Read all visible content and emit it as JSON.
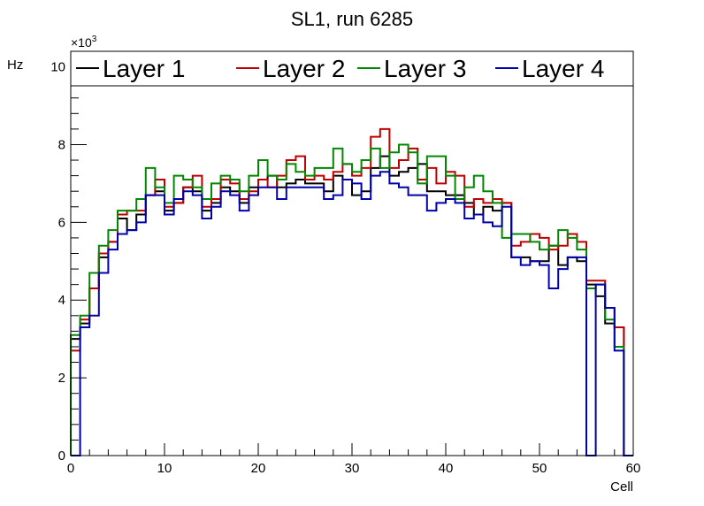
{
  "chart_data": {
    "type": "line",
    "title": "SL1, run 6285",
    "xlabel": "Cell",
    "ylabel": "Hz",
    "y_multiplier_label": "×10",
    "y_multiplier_exp": "3",
    "xlim": [
      0,
      60
    ],
    "ylim": [
      0,
      10400
    ],
    "grid": false,
    "legend_position": "top",
    "x_ticks": [
      "0",
      "10",
      "20",
      "30",
      "40",
      "50",
      "60"
    ],
    "y_ticks": [
      "0",
      "2",
      "4",
      "6",
      "8",
      "10"
    ],
    "x_tick_values": [
      0,
      10,
      20,
      30,
      40,
      50,
      60
    ],
    "y_tick_values": [
      0,
      2000,
      4000,
      6000,
      8000,
      10000
    ],
    "bin_edges_start": 0,
    "bin_width": 1,
    "series": [
      {
        "name": "Layer 1",
        "color": "#000000",
        "values": [
          3000,
          3400,
          4300,
          5100,
          5500,
          6100,
          5800,
          6200,
          6700,
          6800,
          6300,
          6500,
          6900,
          6800,
          6300,
          6500,
          6900,
          6800,
          6500,
          6900,
          7100,
          7200,
          6900,
          7000,
          7100,
          7000,
          7000,
          6800,
          7200,
          7100,
          6700,
          6800,
          7400,
          7700,
          7200,
          7300,
          7400,
          7500,
          6800,
          6800,
          6700,
          6700,
          6500,
          6200,
          6400,
          6300,
          6500,
          5100,
          5100,
          5000,
          5000,
          5400,
          4900,
          5100,
          5000,
          4400,
          4100,
          3400,
          3300,
          0
        ]
      },
      {
        "name": "Layer 2",
        "color": "#c00000",
        "values": [
          2700,
          3500,
          4300,
          5200,
          5500,
          6200,
          6300,
          6300,
          6700,
          7100,
          6400,
          6500,
          6900,
          7200,
          6400,
          6600,
          7100,
          7000,
          6600,
          6800,
          7100,
          6900,
          7200,
          7600,
          7700,
          7100,
          7200,
          7100,
          7300,
          7500,
          7200,
          7400,
          8200,
          8400,
          7400,
          7600,
          7900,
          7100,
          7400,
          7000,
          7300,
          7200,
          6400,
          6600,
          6500,
          6600,
          6500,
          5400,
          5500,
          5700,
          5600,
          5300,
          5400,
          5700,
          5500,
          4500,
          4500,
          3800,
          3300,
          0
        ]
      },
      {
        "name": "Layer 3",
        "color": "#008800",
        "values": [
          3100,
          3600,
          4700,
          5400,
          5800,
          6300,
          6300,
          6600,
          7400,
          6900,
          6500,
          7200,
          7100,
          6900,
          6600,
          7000,
          7200,
          7100,
          6800,
          7200,
          7600,
          7200,
          7100,
          7500,
          7300,
          7200,
          7400,
          7400,
          7900,
          7500,
          7300,
          7600,
          7900,
          7400,
          7800,
          8000,
          7800,
          7000,
          7700,
          7700,
          7200,
          6600,
          6900,
          7200,
          6800,
          6500,
          5600,
          5700,
          5700,
          5500,
          5300,
          5400,
          5800,
          5600,
          5300,
          4300,
          4400,
          3500,
          2800,
          0
        ]
      },
      {
        "name": "Layer 4",
        "color": "#0000aa",
        "values": [
          0,
          3300,
          3600,
          4700,
          5300,
          5700,
          5800,
          6000,
          6700,
          6700,
          6200,
          6600,
          6800,
          6700,
          6100,
          6400,
          6800,
          6700,
          6300,
          6700,
          6900,
          6900,
          6600,
          6900,
          6900,
          6900,
          6900,
          6600,
          6700,
          7100,
          7000,
          6600,
          7200,
          7300,
          7000,
          6900,
          6700,
          6700,
          6300,
          6500,
          6600,
          6500,
          6100,
          6200,
          6000,
          5900,
          6400,
          5100,
          4900,
          5000,
          4900,
          4300,
          4800,
          5100,
          5100,
          0,
          4400,
          3800,
          2700,
          0
        ]
      }
    ]
  }
}
